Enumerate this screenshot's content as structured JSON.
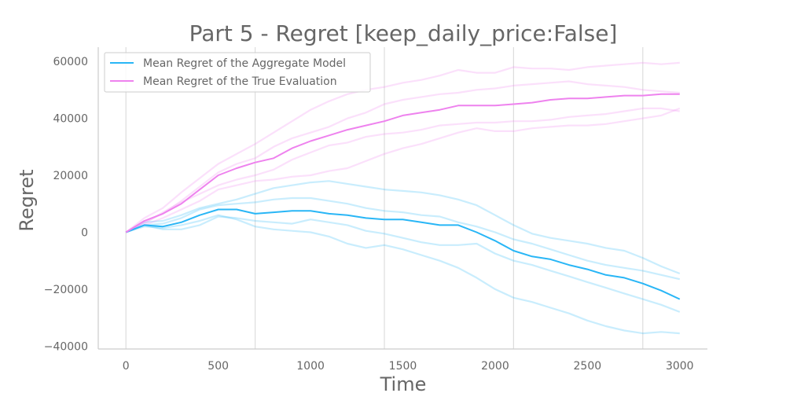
{
  "chart_data": {
    "type": "line",
    "title": "Part 5 - Regret [keep_daily_price:False]",
    "xlabel": "Time",
    "ylabel": "Regret",
    "xlim": [
      -150,
      3150
    ],
    "ylim": [
      -41000,
      65000
    ],
    "xticks": [
      0,
      500,
      1000,
      1500,
      2000,
      2500,
      3000
    ],
    "yticks": [
      -40000,
      -20000,
      0,
      20000,
      40000,
      60000
    ],
    "xtick_labels": [
      "0",
      "500",
      "1000",
      "1500",
      "2000",
      "2500",
      "3000"
    ],
    "ytick_labels": [
      "−40000",
      "−20000",
      "0",
      "20000",
      "40000",
      "60000"
    ],
    "vlines": [
      0,
      700,
      1400,
      2100,
      2800
    ],
    "grid": false,
    "legend_position": "top-left",
    "series": [
      {
        "name": "Mean Regret of the Aggregate Model",
        "role": "mean",
        "color": "#29b6f6",
        "x": [
          0,
          100,
          200,
          300,
          400,
          500,
          600,
          700,
          800,
          900,
          1000,
          1100,
          1200,
          1300,
          1400,
          1500,
          1600,
          1700,
          1800,
          1900,
          2000,
          2100,
          2200,
          2300,
          2400,
          2500,
          2600,
          2700,
          2800,
          2900,
          3000
        ],
        "values": [
          0,
          2500,
          2000,
          3500,
          6000,
          8000,
          8000,
          6500,
          7000,
          7500,
          7500,
          6500,
          6000,
          5000,
          4500,
          4500,
          3500,
          2500,
          2500,
          0,
          -3000,
          -6500,
          -8500,
          -9500,
          -11500,
          -13000,
          -15000,
          -16000,
          -18000,
          -20500,
          -23500
        ]
      },
      {
        "name": "Mean Regret of the True Evaluation",
        "role": "mean",
        "color": "#ee82ee",
        "x": [
          0,
          100,
          200,
          300,
          400,
          500,
          600,
          700,
          800,
          900,
          1000,
          1100,
          1200,
          1300,
          1400,
          1500,
          1600,
          1700,
          1800,
          1900,
          2000,
          2100,
          2200,
          2300,
          2400,
          2500,
          2600,
          2700,
          2800,
          2900,
          3000
        ],
        "values": [
          0,
          4000,
          6500,
          10000,
          15000,
          20000,
          22500,
          24500,
          26000,
          29500,
          32000,
          34000,
          36000,
          37500,
          39000,
          41000,
          42000,
          43000,
          44500,
          44500,
          44500,
          45000,
          45500,
          46500,
          47000,
          47000,
          47500,
          48000,
          48000,
          48500,
          48500
        ]
      }
    ],
    "runs": [
      {
        "color": "#29b6f6",
        "x": [
          0,
          100,
          200,
          300,
          400,
          500,
          600,
          700,
          800,
          900,
          1000,
          1100,
          1200,
          1300,
          1400,
          1500,
          1600,
          1700,
          1800,
          1900,
          2000,
          2100,
          2200,
          2300,
          2400,
          2500,
          2600,
          2700,
          2800,
          2900,
          3000
        ],
        "values": [
          0,
          3500,
          4000,
          6000,
          8500,
          10000,
          11500,
          13500,
          15500,
          16500,
          17500,
          18000,
          17000,
          16000,
          15000,
          14500,
          14000,
          13000,
          11500,
          9500,
          6000,
          2500,
          -500,
          -2000,
          -3000,
          -4000,
          -5500,
          -6500,
          -9000,
          -12000,
          -14500
        ]
      },
      {
        "color": "#29b6f6",
        "x": [
          0,
          100,
          200,
          300,
          400,
          500,
          600,
          700,
          800,
          900,
          1000,
          1100,
          1200,
          1300,
          1400,
          1500,
          1600,
          1700,
          1800,
          1900,
          2000,
          2100,
          2200,
          2300,
          2400,
          2500,
          2600,
          2700,
          2800,
          2900,
          3000
        ],
        "values": [
          0,
          2500,
          3000,
          5000,
          8000,
          9500,
          10000,
          10500,
          11500,
          12000,
          12000,
          11000,
          10000,
          8500,
          7500,
          7000,
          6000,
          5500,
          3500,
          2000,
          0,
          -2500,
          -4000,
          -6000,
          -8000,
          -10000,
          -11500,
          -12500,
          -13500,
          -15000,
          -16500
        ]
      },
      {
        "color": "#29b6f6",
        "x": [
          0,
          100,
          200,
          300,
          400,
          500,
          600,
          700,
          800,
          900,
          1000,
          1100,
          1200,
          1300,
          1400,
          1500,
          1600,
          1700,
          1800,
          1900,
          2000,
          2100,
          2200,
          2300,
          2400,
          2500,
          2600,
          2700,
          2800,
          2900,
          3000
        ],
        "values": [
          0,
          2000,
          1500,
          2500,
          4000,
          6000,
          4500,
          2000,
          1000,
          500,
          0,
          -1500,
          -4000,
          -5500,
          -4500,
          -6000,
          -8000,
          -10000,
          -12500,
          -16000,
          -20000,
          -23000,
          -24500,
          -26500,
          -28500,
          -31000,
          -33000,
          -34500,
          -35500,
          -35000,
          -35500
        ]
      },
      {
        "color": "#29b6f6",
        "x": [
          0,
          100,
          200,
          300,
          400,
          500,
          600,
          700,
          800,
          900,
          1000,
          1100,
          1200,
          1300,
          1400,
          1500,
          1600,
          1700,
          1800,
          1900,
          2000,
          2100,
          2200,
          2300,
          2400,
          2500,
          2600,
          2700,
          2800,
          2900,
          3000
        ],
        "values": [
          0,
          2500,
          1000,
          1000,
          2500,
          5500,
          5000,
          4000,
          3500,
          3000,
          4500,
          3500,
          2500,
          500,
          -500,
          -2000,
          -3500,
          -4500,
          -4500,
          -4000,
          -7500,
          -10000,
          -11500,
          -13500,
          -15500,
          -17500,
          -19500,
          -21500,
          -23500,
          -25500,
          -28000
        ]
      },
      {
        "color": "#ee82ee",
        "x": [
          0,
          100,
          200,
          300,
          400,
          500,
          600,
          700,
          800,
          900,
          1000,
          1100,
          1200,
          1300,
          1400,
          1500,
          1600,
          1700,
          1800,
          1900,
          2000,
          2100,
          2200,
          2300,
          2400,
          2500,
          2600,
          2700,
          2800,
          2900,
          3000
        ],
        "values": [
          0,
          5000,
          8500,
          14000,
          19000,
          24000,
          27500,
          31000,
          35000,
          39000,
          43000,
          46000,
          48500,
          50000,
          51000,
          52500,
          53500,
          55000,
          57000,
          56000,
          56000,
          58000,
          57500,
          57500,
          57000,
          58000,
          58500,
          59000,
          59500,
          59000,
          59500
        ]
      },
      {
        "color": "#ee82ee",
        "x": [
          0,
          100,
          200,
          300,
          400,
          500,
          600,
          700,
          800,
          900,
          1000,
          1100,
          1200,
          1300,
          1400,
          1500,
          1600,
          1700,
          1800,
          1900,
          2000,
          2100,
          2200,
          2300,
          2400,
          2500,
          2600,
          2700,
          2800,
          2900,
          3000
        ],
        "values": [
          0,
          3500,
          6500,
          11000,
          16000,
          21000,
          24000,
          26000,
          30000,
          33000,
          35000,
          37000,
          40000,
          42000,
          45000,
          46500,
          47500,
          48500,
          49000,
          50000,
          50500,
          51500,
          52000,
          52500,
          53000,
          52000,
          51500,
          51000,
          50000,
          49500,
          49000
        ]
      },
      {
        "color": "#ee82ee",
        "x": [
          0,
          100,
          200,
          300,
          400,
          500,
          600,
          700,
          800,
          900,
          1000,
          1100,
          1200,
          1300,
          1400,
          1500,
          1600,
          1700,
          1800,
          1900,
          2000,
          2100,
          2200,
          2300,
          2400,
          2500,
          2600,
          2700,
          2800,
          2900,
          3000
        ],
        "values": [
          0,
          3000,
          7000,
          10500,
          13500,
          16500,
          18500,
          20000,
          22000,
          25500,
          28000,
          30500,
          31500,
          33500,
          34500,
          35000,
          36000,
          37500,
          38000,
          38500,
          38500,
          39000,
          39000,
          39500,
          40500,
          41000,
          41500,
          42500,
          43500,
          43500,
          42500
        ]
      },
      {
        "color": "#ee82ee",
        "x": [
          0,
          100,
          200,
          300,
          400,
          500,
          600,
          700,
          800,
          900,
          1000,
          1100,
          1200,
          1300,
          1400,
          1500,
          1600,
          1700,
          1800,
          1900,
          2000,
          2100,
          2200,
          2300,
          2400,
          2500,
          2600,
          2700,
          2800,
          2900,
          3000
        ],
        "values": [
          0,
          2500,
          5000,
          8000,
          11000,
          15000,
          16500,
          18000,
          18500,
          19500,
          20000,
          21500,
          22500,
          25000,
          27500,
          29500,
          31000,
          33000,
          35000,
          36500,
          35500,
          35500,
          36500,
          37000,
          37500,
          37500,
          38000,
          39000,
          40000,
          41000,
          43500
        ]
      }
    ],
    "styles": {
      "run_opacity": 0.25,
      "axis_color": "#cccccc",
      "vline_color": "#dddddd",
      "text_color": "#666666",
      "legend_border": "#cccccc"
    }
  }
}
